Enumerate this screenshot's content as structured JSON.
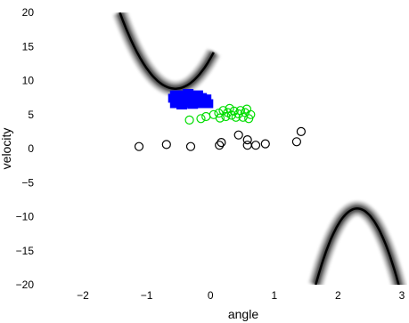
{
  "chart_data": {
    "type": "scatter",
    "xlabel": "angle",
    "ylabel": "velocity",
    "xlim": [
      -2,
      3
    ],
    "ylim": [
      -20,
      20
    ],
    "xticks": [
      "−2",
      "−1",
      "0",
      "1",
      "2",
      "3"
    ],
    "yticks": [
      "20",
      "15",
      "10",
      "5",
      "0",
      "−5",
      "−10",
      "−15",
      "−20"
    ],
    "grid": false,
    "legend": "none",
    "colors": {
      "black": "#000000",
      "green": "#00dd00",
      "blue": "#0000ff"
    },
    "series": [
      {
        "marker": "circle-open",
        "color": "#000000",
        "points": [
          [
            -1.12,
            0.3
          ],
          [
            -0.69,
            0.6
          ],
          [
            -0.31,
            0.3
          ],
          [
            0.17,
            0.9
          ],
          [
            0.14,
            0.5
          ],
          [
            0.44,
            2.0
          ],
          [
            0.58,
            1.3
          ],
          [
            0.58,
            0.5
          ],
          [
            0.71,
            0.5
          ],
          [
            0.86,
            0.7
          ],
          [
            1.35,
            1.0
          ],
          [
            1.42,
            2.5
          ]
        ]
      },
      {
        "marker": "circle-open",
        "color": "#00dd00",
        "points": [
          [
            -0.33,
            4.2
          ],
          [
            -0.15,
            4.4
          ],
          [
            -0.07,
            4.7
          ],
          [
            0.05,
            5.0
          ],
          [
            0.13,
            5.2
          ],
          [
            0.15,
            4.5
          ],
          [
            0.2,
            5.6
          ],
          [
            0.24,
            4.7
          ],
          [
            0.27,
            5.3
          ],
          [
            0.3,
            5.9
          ],
          [
            0.33,
            4.9
          ],
          [
            0.37,
            5.5
          ],
          [
            0.4,
            4.6
          ],
          [
            0.44,
            5.1
          ],
          [
            0.47,
            5.6
          ],
          [
            0.51,
            4.6
          ],
          [
            0.54,
            5.3
          ],
          [
            0.57,
            5.8
          ],
          [
            0.6,
            4.4
          ],
          [
            0.63,
            5.0
          ]
        ]
      },
      {
        "marker": "square-filled",
        "color": "#0000ff",
        "points": [
          [
            -0.58,
            7.4
          ],
          [
            -0.55,
            6.6
          ],
          [
            -0.52,
            7.9
          ],
          [
            -0.48,
            7.1
          ],
          [
            -0.45,
            6.4
          ],
          [
            -0.42,
            7.6
          ],
          [
            -0.38,
            6.9
          ],
          [
            -0.35,
            8.1
          ],
          [
            -0.31,
            7.2
          ],
          [
            -0.28,
            6.5
          ],
          [
            -0.24,
            7.7
          ],
          [
            -0.21,
            7.0
          ],
          [
            -0.17,
            6.6
          ],
          [
            -0.14,
            7.5
          ],
          [
            -0.1,
            6.8
          ],
          [
            -0.07,
            7.3
          ],
          [
            -0.04,
            6.6
          ],
          [
            -0.55,
            7.9
          ],
          [
            -0.45,
            7.8
          ],
          [
            -0.33,
            6.7
          ],
          [
            -0.2,
            7.9
          ]
        ]
      }
    ],
    "bands": [
      {
        "name": "",
        "x0": -1.42,
        "vertex_x": -0.55,
        "vertex_y": 8.8,
        "direction": "up",
        "x_end": 0.05
      },
      {
        "name": "",
        "x0": 1.65,
        "vertex_x": 2.3,
        "vertex_y": -8.8,
        "direction": "down",
        "x_end": 3.05
      }
    ]
  }
}
